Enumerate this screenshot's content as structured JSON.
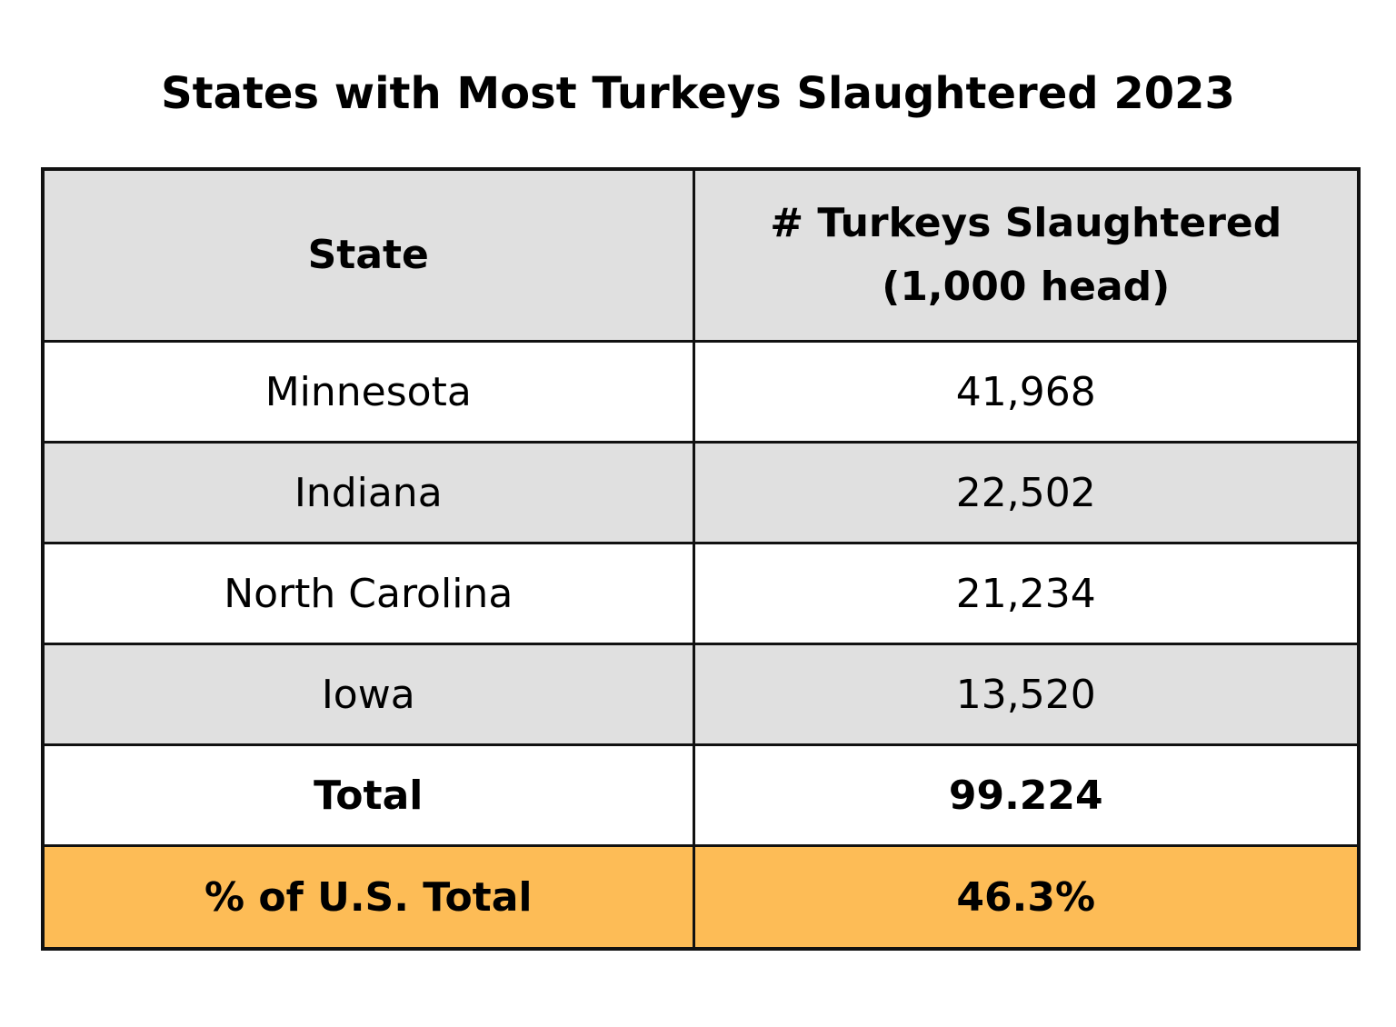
{
  "chart_data": {
    "type": "table",
    "title": "States with Most Turkeys Slaughtered 2023",
    "columns": [
      "State",
      "# Turkeys Slaughtered",
      "(1,000 head)"
    ],
    "rows": [
      {
        "state": "Minnesota",
        "value": "41,968"
      },
      {
        "state": "Indiana",
        "value": "22,502"
      },
      {
        "state": "North Carolina",
        "value": "21,234"
      },
      {
        "state": "Iowa",
        "value": "13,520"
      }
    ],
    "total": {
      "label": "Total",
      "value": "99.224"
    },
    "share": {
      "label": "% of U.S. Total",
      "value": "46.3%"
    },
    "colors": {
      "header_fill": "#e0e0e0",
      "alt_row_fill": "#e0e0e0",
      "highlight_fill": "#fdbc56",
      "border": "#111111"
    }
  }
}
